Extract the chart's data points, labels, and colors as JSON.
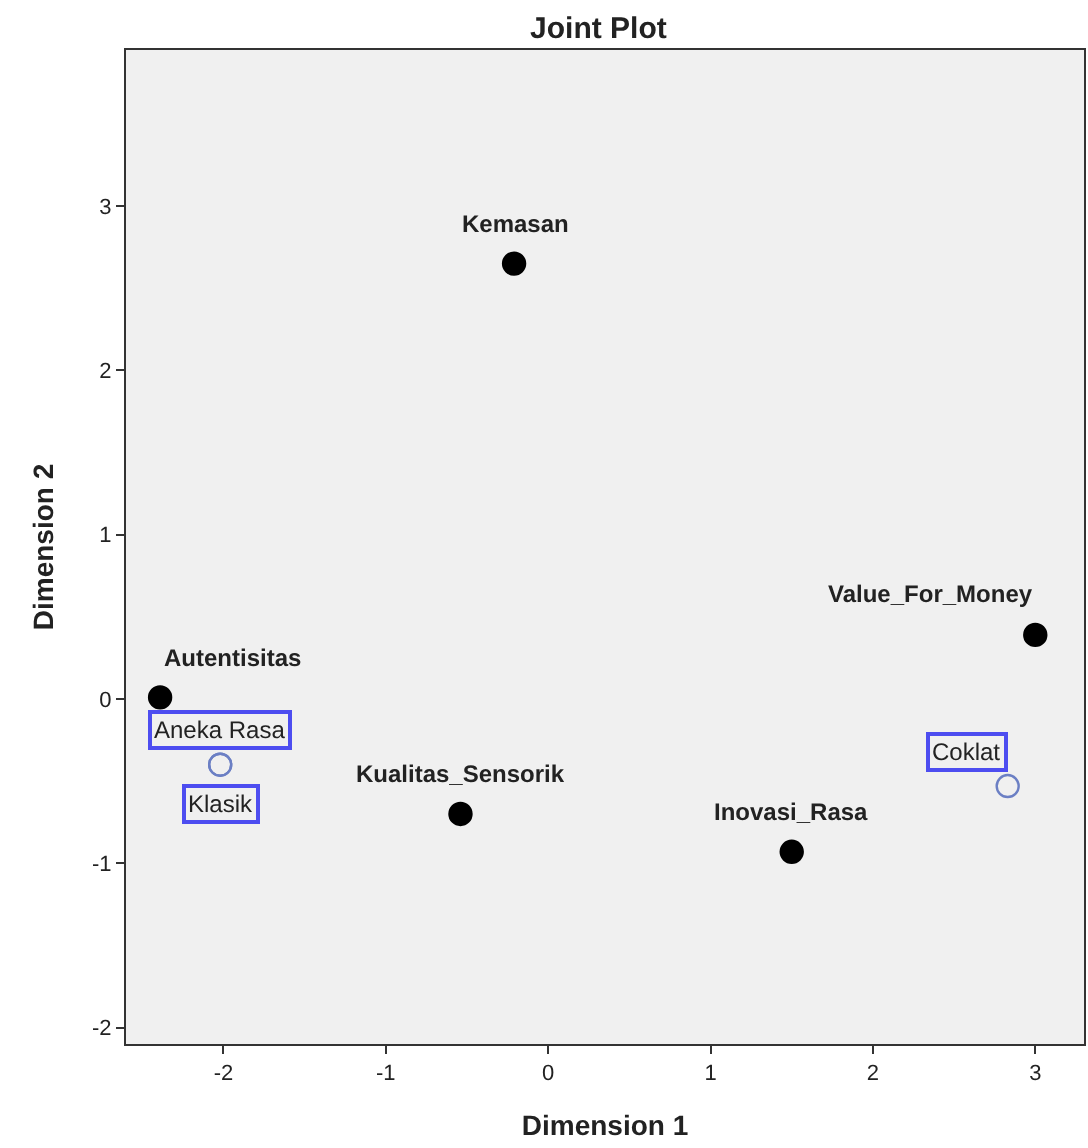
{
  "chart_data": {
    "type": "scatter",
    "title": "Joint Plot",
    "xlabel": "Dimension 1",
    "ylabel": "Dimension 2",
    "xlim": [
      -2.6,
      3.3
    ],
    "ylim": [
      -2.1,
      3.95
    ],
    "xticks": [
      -2,
      -1,
      0,
      1,
      2,
      3
    ],
    "yticks": [
      -2,
      -1,
      0,
      1,
      2,
      3
    ],
    "grid": false,
    "series": [
      {
        "color": "#000000",
        "marker": "circle",
        "x": [
          -0.21,
          3.0,
          -2.39,
          -0.54,
          1.5
        ],
        "values": [
          2.65,
          0.39,
          0.01,
          -0.7,
          -0.93
        ]
      },
      {
        "color": "#6b7fc4",
        "marker": "circle-open",
        "x": [
          -2.02,
          -2.02,
          2.83
        ],
        "values": [
          -0.4,
          -0.4,
          -0.53
        ]
      }
    ],
    "annotations": [
      {
        "text": "Kemasan",
        "x": -0.21,
        "y": 2.65
      },
      {
        "text": "Value_For_Money",
        "x": 3.0,
        "y": 0.39
      },
      {
        "text": "Autentisitas",
        "x": -2.39,
        "y": 0.01
      },
      {
        "text": "Kualitas_Sensorik",
        "x": -0.54,
        "y": -0.7
      },
      {
        "text": "Inovasi_Rasa",
        "x": 1.5,
        "y": -0.93
      },
      {
        "text": "Aneka Rasa",
        "x": -2.02,
        "y": -0.4
      },
      {
        "text": "Klasik",
        "x": -2.02,
        "y": -0.4
      },
      {
        "text": "Coklat",
        "x": 2.83,
        "y": -0.53
      }
    ]
  }
}
